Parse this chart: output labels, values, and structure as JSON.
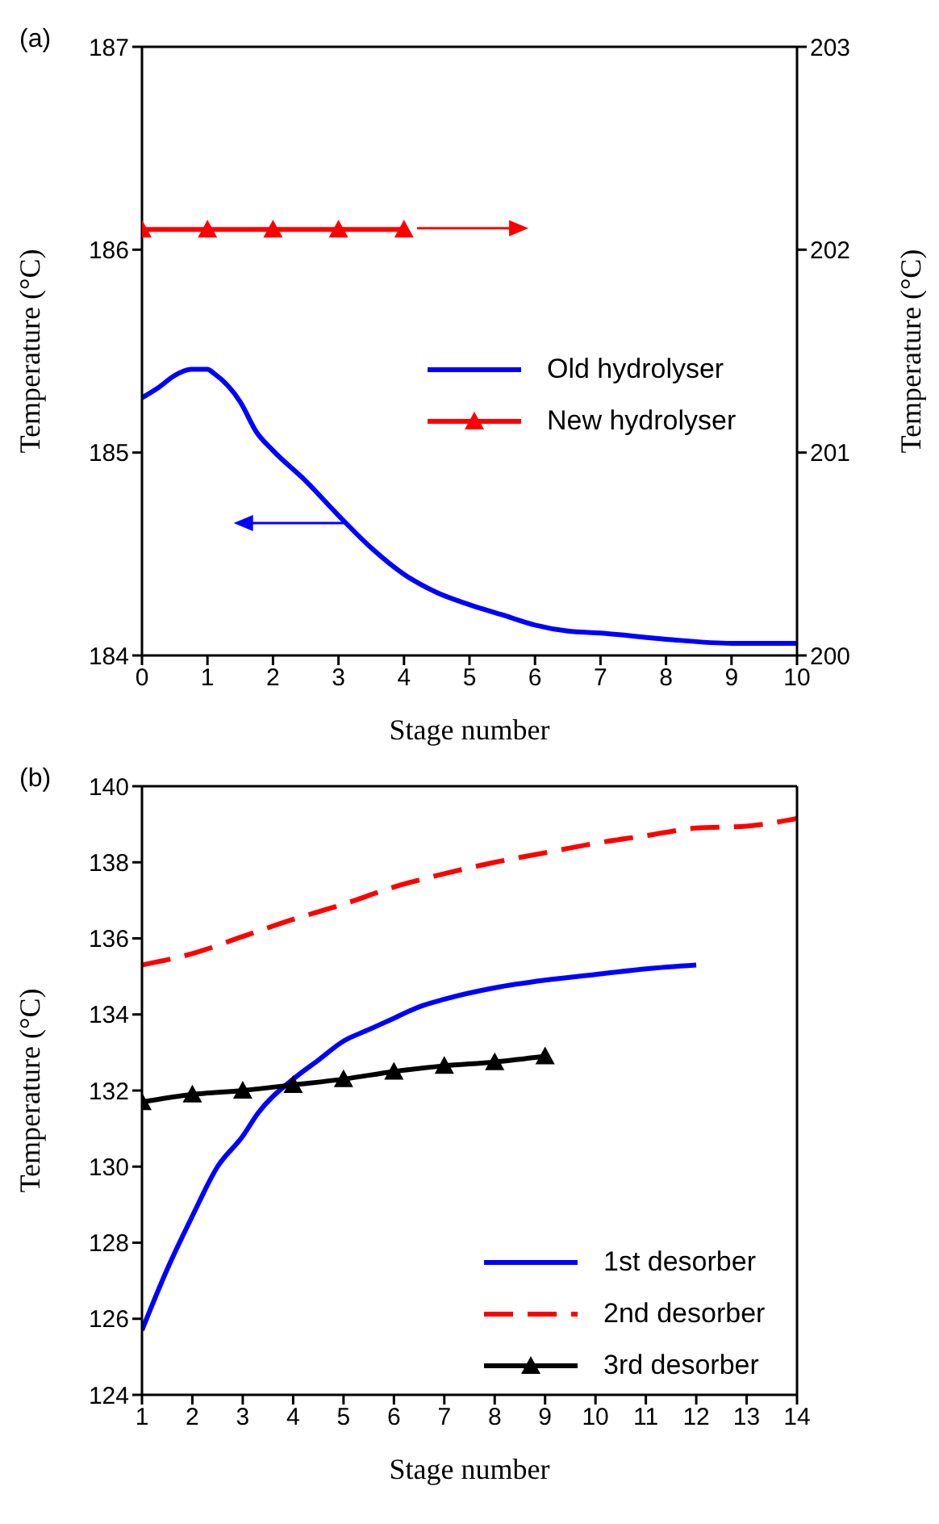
{
  "chart_data": [
    {
      "type": "line",
      "title": "(a)",
      "xlabel": "Stage number",
      "ylabel": "Temperature (°C)",
      "y2label": "Temperature (°C)",
      "xlim": [
        0,
        10
      ],
      "xticks": [
        0,
        1,
        2,
        3,
        4,
        5,
        6,
        7,
        8,
        9,
        10
      ],
      "ylim": [
        184,
        187
      ],
      "yticks": [
        184,
        185,
        186,
        187
      ],
      "y2lim": [
        200,
        203
      ],
      "y2ticks": [
        200,
        201,
        202,
        203
      ],
      "legend": "right",
      "series": [
        {
          "name": "Old hydrolyser",
          "color": "#0000ff",
          "marker": "none",
          "line_style": "solid",
          "x": [
            0,
            0.25,
            0.5,
            0.75,
            1,
            1.1,
            1.5,
            1.75,
            2,
            2.5,
            3,
            3.5,
            4,
            4.5,
            5,
            5.5,
            6,
            6.5,
            7,
            8,
            9,
            10
          ],
          "values": [
            185.27,
            185.32,
            185.38,
            185.41,
            185.41,
            185.39,
            185.25,
            185.1,
            185.01,
            184.86,
            184.69,
            184.53,
            184.4,
            184.31,
            184.25,
            184.2,
            184.15,
            184.12,
            184.11,
            184.08,
            184.06,
            184.06
          ]
        },
        {
          "name": "New hydrolyser",
          "color": "#ff0000",
          "marker": "triangle",
          "line_style": "solid",
          "axis": "y2",
          "x": [
            0,
            1,
            2,
            3,
            4
          ],
          "values": [
            202.1,
            202.1,
            202.1,
            202.1,
            202.1
          ]
        }
      ]
    },
    {
      "type": "line",
      "title": "(b)",
      "xlabel": "Stage number",
      "ylabel": "Temperature (°C)",
      "xlim": [
        1,
        14
      ],
      "xticks": [
        1,
        2,
        3,
        4,
        5,
        6,
        7,
        8,
        9,
        10,
        11,
        12,
        13,
        14
      ],
      "ylim": [
        124,
        140
      ],
      "yticks": [
        124,
        126,
        128,
        130,
        132,
        134,
        136,
        138,
        140
      ],
      "legend": "bottom right",
      "series": [
        {
          "name": "1st desorber",
          "color": "#0000ff",
          "marker": "none",
          "line_style": "solid",
          "x": [
            1,
            1.5,
            2,
            2.5,
            3,
            3.3,
            4,
            4.5,
            5,
            5.5,
            6,
            6.5,
            7,
            8,
            9,
            10,
            11,
            12
          ],
          "values": [
            125.7,
            127.3,
            128.7,
            130.0,
            130.8,
            131.4,
            132.3,
            132.8,
            133.3,
            133.6,
            133.9,
            134.2,
            134.4,
            134.7,
            134.9,
            135.05,
            135.2,
            135.3
          ]
        },
        {
          "name": "2nd desorber",
          "color": "#ff0000",
          "marker": "none",
          "line_style": "dashed",
          "x": [
            1,
            2,
            3,
            4,
            5,
            6,
            7,
            8,
            9,
            10,
            11,
            12,
            13,
            14
          ],
          "values": [
            135.3,
            135.6,
            136.05,
            136.5,
            136.9,
            137.35,
            137.7,
            138.0,
            138.25,
            138.5,
            138.7,
            138.9,
            138.95,
            139.15
          ]
        },
        {
          "name": "3rd desorber",
          "color": "#000000",
          "marker": "triangle",
          "line_style": "solid",
          "x": [
            1,
            2,
            3,
            4,
            5,
            6,
            7,
            8,
            9
          ],
          "values": [
            131.7,
            131.9,
            132.0,
            132.15,
            132.3,
            132.5,
            132.65,
            132.75,
            132.9
          ]
        }
      ]
    }
  ]
}
